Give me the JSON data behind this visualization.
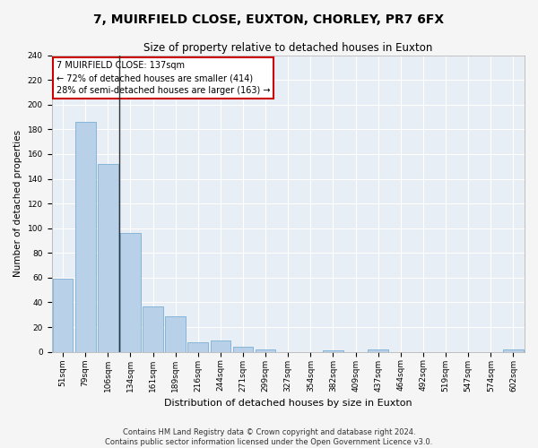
{
  "title": "7, MUIRFIELD CLOSE, EUXTON, CHORLEY, PR7 6FX",
  "subtitle": "Size of property relative to detached houses in Euxton",
  "xlabel": "Distribution of detached houses by size in Euxton",
  "ylabel": "Number of detached properties",
  "categories": [
    "51sqm",
    "79sqm",
    "106sqm",
    "134sqm",
    "161sqm",
    "189sqm",
    "216sqm",
    "244sqm",
    "271sqm",
    "299sqm",
    "327sqm",
    "354sqm",
    "382sqm",
    "409sqm",
    "437sqm",
    "464sqm",
    "492sqm",
    "519sqm",
    "547sqm",
    "574sqm",
    "602sqm"
  ],
  "values": [
    59,
    186,
    152,
    96,
    37,
    29,
    8,
    9,
    4,
    2,
    0,
    0,
    1,
    0,
    2,
    0,
    0,
    0,
    0,
    0,
    2
  ],
  "bar_color": "#b8d0e8",
  "bar_edge_color": "#7aafd4",
  "vline_color": "#333333",
  "annotation_title": "7 MUIRFIELD CLOSE: 137sqm",
  "annotation_line2": "← 72% of detached houses are smaller (414)",
  "annotation_line3": "28% of semi-detached houses are larger (163) →",
  "annotation_box_color": "#cc0000",
  "annotation_bg": "#ffffff",
  "ylim": [
    0,
    240
  ],
  "yticks": [
    0,
    20,
    40,
    60,
    80,
    100,
    120,
    140,
    160,
    180,
    200,
    220,
    240
  ],
  "footer_line1": "Contains HM Land Registry data © Crown copyright and database right 2024.",
  "footer_line2": "Contains public sector information licensed under the Open Government Licence v3.0.",
  "bg_color": "#e8eef5",
  "fig_bg_color": "#f5f5f5",
  "grid_color": "#ffffff",
  "title_fontsize": 10,
  "subtitle_fontsize": 8.5,
  "xlabel_fontsize": 8,
  "ylabel_fontsize": 7.5,
  "tick_fontsize": 6.5,
  "footer_fontsize": 6,
  "annot_fontsize": 7
}
